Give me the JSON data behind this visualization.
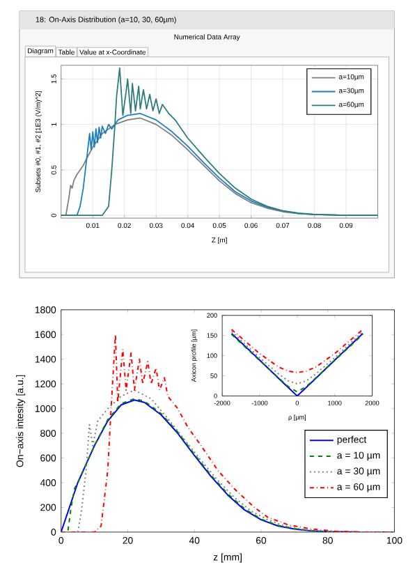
{
  "chart_data": [
    {
      "type": "line",
      "title": "18: On-Axis Distribution (a=10, 30, 60µm)",
      "subtitle": "Numerical Data Array",
      "annotations": [
        "Diagram",
        "Table",
        "Value at x-Coordinate"
      ],
      "xlabel": "Z [m]",
      "ylabel": "Subsets #0, #1, #2 [1E3 (V/m)^2]",
      "xlim": [
        0,
        0.1
      ],
      "ylim": [
        -0.03,
        1.65
      ],
      "xticks": [
        0.01,
        0.02,
        0.03,
        0.04,
        0.05,
        0.06,
        0.07,
        0.08,
        0.09
      ],
      "yticks": [
        0,
        0.5,
        1,
        1.5
      ],
      "grid": true,
      "legend": "top right",
      "series": [
        {
          "name": "a=10µm",
          "color": "#7f7f7f",
          "x": [
            0,
            0.0015,
            0.0025,
            0.003,
            0.0035,
            0.004,
            0.005,
            0.006,
            0.007,
            0.008,
            0.01,
            0.013,
            0.017,
            0.021,
            0.025,
            0.03,
            0.035,
            0.04,
            0.045,
            0.05,
            0.055,
            0.06,
            0.065,
            0.07,
            0.075,
            0.08,
            0.09,
            0.1
          ],
          "values": [
            0,
            0,
            0.2,
            0.33,
            0.3,
            0.38,
            0.45,
            0.5,
            0.55,
            0.62,
            0.75,
            0.9,
            1.0,
            1.05,
            1.07,
            1.0,
            0.88,
            0.72,
            0.55,
            0.38,
            0.24,
            0.14,
            0.08,
            0.04,
            0.02,
            0.01,
            0,
            0
          ]
        },
        {
          "name": "a=30µm",
          "color": "#1a7fc1",
          "x": [
            0,
            0.005,
            0.006,
            0.007,
            0.008,
            0.0085,
            0.009,
            0.0095,
            0.01,
            0.0105,
            0.011,
            0.0115,
            0.012,
            0.0125,
            0.013,
            0.014,
            0.015,
            0.016,
            0.018,
            0.021,
            0.025,
            0.03,
            0.035,
            0.04,
            0.045,
            0.05,
            0.055,
            0.06,
            0.065,
            0.07,
            0.075,
            0.08,
            0.09,
            0.1
          ],
          "values": [
            0,
            0,
            0.1,
            0.3,
            0.6,
            0.75,
            0.9,
            0.72,
            0.92,
            0.75,
            0.95,
            0.8,
            0.97,
            0.85,
            0.98,
            0.9,
            1.0,
            0.95,
            1.05,
            1.1,
            1.12,
            1.05,
            0.92,
            0.76,
            0.58,
            0.41,
            0.26,
            0.16,
            0.09,
            0.05,
            0.02,
            0.01,
            0,
            0
          ]
        },
        {
          "name": "a=60µm",
          "color": "#2e7d7d",
          "x": [
            0,
            0.013,
            0.015,
            0.016,
            0.017,
            0.0175,
            0.0185,
            0.0195,
            0.0205,
            0.021,
            0.022,
            0.0225,
            0.0235,
            0.0245,
            0.025,
            0.026,
            0.027,
            0.028,
            0.029,
            0.03,
            0.031,
            0.032,
            0.034,
            0.036,
            0.038,
            0.04,
            0.045,
            0.05,
            0.055,
            0.06,
            0.065,
            0.07,
            0.075,
            0.08,
            0.09,
            0.1
          ],
          "values": [
            0,
            0,
            0.1,
            0.5,
            1.0,
            1.3,
            1.62,
            1.1,
            1.35,
            1.5,
            1.12,
            1.45,
            1.15,
            1.42,
            1.17,
            1.38,
            1.17,
            1.33,
            1.15,
            1.28,
            1.12,
            1.22,
            1.12,
            1.05,
            0.95,
            0.85,
            0.65,
            0.46,
            0.3,
            0.18,
            0.1,
            0.05,
            0.025,
            0.01,
            0,
            0
          ]
        }
      ]
    },
    {
      "type": "line",
      "xlabel": "z [mm]",
      "ylabel": "On−axis intesity [a.u.]",
      "xlim": [
        0,
        100
      ],
      "ylim": [
        0,
        1800
      ],
      "xticks": [
        0,
        20,
        40,
        60,
        80,
        100
      ],
      "yticks": [
        0,
        200,
        400,
        600,
        800,
        1000,
        1200,
        1400,
        1600,
        1800
      ],
      "legend": "right",
      "series": [
        {
          "name": "perfect",
          "color": "#0000ff",
          "line_style": "solid",
          "x": [
            0,
            5,
            10,
            14,
            18,
            22,
            25,
            30,
            35,
            40,
            45,
            50,
            55,
            60,
            65,
            70,
            75,
            80,
            90,
            100
          ],
          "values": [
            0,
            400,
            700,
            900,
            1030,
            1070,
            1050,
            950,
            800,
            620,
            450,
            300,
            180,
            100,
            50,
            25,
            10,
            3,
            0,
            0
          ]
        },
        {
          "name": "a = 10 µm",
          "color": "#008000",
          "line_style": "dashed",
          "x": [
            0,
            2,
            3,
            4,
            5,
            10,
            14,
            18,
            22,
            25,
            30,
            35,
            40,
            45,
            50,
            55,
            60,
            65,
            70,
            75,
            80,
            90,
            100
          ],
          "values": [
            0,
            0,
            200,
            350,
            400,
            700,
            910,
            1040,
            1080,
            1060,
            960,
            810,
            630,
            460,
            310,
            190,
            105,
            55,
            28,
            12,
            4,
            0,
            0
          ]
        },
        {
          "name": "a = 30 µm",
          "color": "#808080",
          "line_style": "dotted",
          "x": [
            0,
            5,
            6,
            7.5,
            8.5,
            9.5,
            11,
            14,
            18,
            22,
            27,
            32,
            37,
            42,
            47,
            52,
            57,
            62,
            67,
            73,
            80,
            90,
            100
          ],
          "values": [
            0,
            0,
            150,
            500,
            870,
            700,
            900,
            1000,
            1100,
            1150,
            1080,
            920,
            750,
            580,
            420,
            280,
            170,
            100,
            50,
            20,
            5,
            0,
            0
          ]
        },
        {
          "name": "a = 60 µm",
          "color": "#ff0000",
          "line_style": "dashdot",
          "x": [
            0,
            10,
            12,
            14,
            15,
            16.3,
            17,
            18.5,
            19.5,
            21,
            22,
            23.5,
            24.5,
            26,
            27,
            28.5,
            29.5,
            31,
            32,
            35,
            38,
            42,
            47,
            52,
            58,
            62,
            68,
            75,
            82,
            90,
            100
          ],
          "values": [
            0,
            0,
            50,
            500,
            1000,
            1600,
            1050,
            1480,
            1150,
            1450,
            1150,
            1400,
            1200,
            1380,
            1200,
            1330,
            1150,
            1250,
            1100,
            1000,
            850,
            700,
            500,
            350,
            200,
            120,
            60,
            25,
            8,
            0,
            0
          ]
        }
      ]
    },
    {
      "type": "line",
      "xlabel": "ρ [µm]",
      "ylabel": "Axicon profile [µm]",
      "xlim": [
        -2000,
        2000
      ],
      "ylim": [
        0,
        200
      ],
      "xticks": [
        -2000,
        -1000,
        0,
        1000,
        2000
      ],
      "yticks": [
        0,
        50,
        100,
        150,
        200
      ],
      "series": [
        {
          "color": "#0000ff",
          "line_style": "solid",
          "x": [
            -1750,
            -1500,
            -1000,
            -500,
            -250,
            0,
            250,
            500,
            1000,
            1500,
            1750
          ],
          "values": [
            155,
            133,
            89,
            44,
            22,
            0,
            22,
            44,
            89,
            133,
            155
          ]
        },
        {
          "color": "#008000",
          "line_style": "dashed",
          "x": [
            -1750,
            -1500,
            -1000,
            -500,
            -250,
            0,
            250,
            500,
            1000,
            1500,
            1750
          ],
          "values": [
            153,
            131,
            88,
            45,
            24,
            10,
            24,
            45,
            88,
            131,
            153
          ]
        },
        {
          "color": "#808080",
          "line_style": "dotted",
          "x": [
            -1750,
            -1500,
            -1000,
            -500,
            -250,
            0,
            250,
            500,
            1000,
            1500,
            1750
          ],
          "values": [
            160,
            138,
            95,
            55,
            38,
            30,
            38,
            55,
            95,
            138,
            160
          ]
        },
        {
          "color": "#ff0000",
          "line_style": "dashdot",
          "x": [
            -1750,
            -1500,
            -1000,
            -500,
            -250,
            0,
            250,
            500,
            1000,
            1500,
            1750
          ],
          "values": [
            165,
            145,
            105,
            72,
            62,
            58,
            62,
            72,
            105,
            145,
            165
          ]
        }
      ]
    }
  ]
}
